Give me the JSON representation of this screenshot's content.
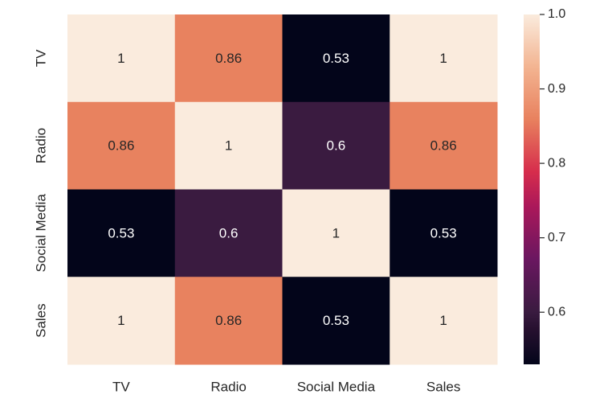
{
  "chart_data": {
    "type": "heatmap",
    "title": "",
    "xlabel": "",
    "ylabel": "",
    "x_labels": [
      "TV",
      "Radio",
      "Social Media",
      "Sales"
    ],
    "y_labels": [
      "TV",
      "Radio",
      "Social Media",
      "Sales"
    ],
    "values": [
      [
        1,
        0.86,
        0.53,
        1
      ],
      [
        0.86,
        1,
        0.6,
        0.86
      ],
      [
        0.53,
        0.6,
        1,
        0.53
      ],
      [
        1,
        0.86,
        0.53,
        1
      ]
    ],
    "annotations": [
      [
        "1",
        "0.86",
        "0.53",
        "1"
      ],
      [
        "0.86",
        "1",
        "0.6",
        "0.86"
      ],
      [
        "0.53",
        "0.6",
        "1",
        "0.53"
      ],
      [
        "1",
        "0.86",
        "0.53",
        "1"
      ]
    ],
    "colorbar": {
      "min": 0.53,
      "max": 1.0,
      "ticks": [
        1.0,
        0.9,
        0.8,
        0.7,
        0.6
      ],
      "tick_labels": [
        "1.0",
        "0.9",
        "0.8",
        "0.7",
        "0.6"
      ]
    },
    "colormap": "rocket",
    "colors": {
      "high": "#faebdd",
      "v086": "#e8815e",
      "v060": "#3a1b40",
      "low": "#03051a"
    },
    "grid": false,
    "legend": "colorbar-right"
  }
}
